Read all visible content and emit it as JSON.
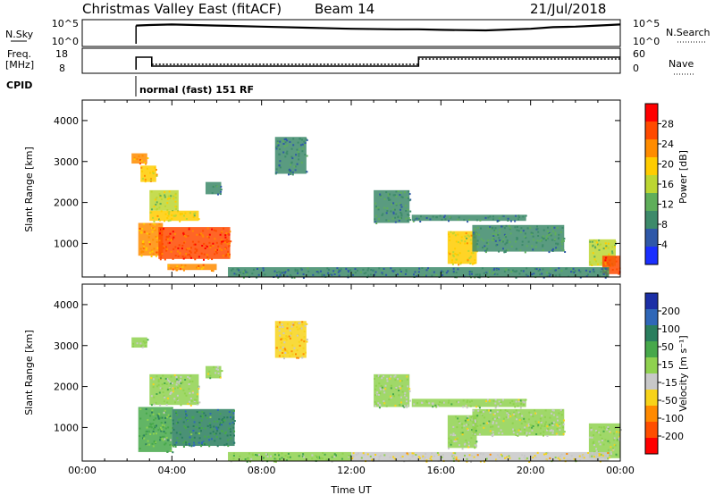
{
  "header": {
    "radar": "Christmas Valley East (fitACF)",
    "beam": "Beam 14",
    "date": "21/Jul/2018"
  },
  "status_panels": {
    "nsky_label": "N.Sky",
    "nsky_ticks": [
      "10^5",
      "10^0"
    ],
    "nsearch_label": "N.Search",
    "nsearch_ticks": [
      "10^5",
      "10^0"
    ],
    "freq_label": "Freq.",
    "freq_unit": "[MHz]",
    "freq_ticks": [
      "18",
      "8"
    ],
    "nave_label": "Nave",
    "nave_ticks": [
      "60",
      "0"
    ],
    "cpid_label": "CPID",
    "cpid_text": "normal (fast) 151 RF"
  },
  "colors": {
    "power_scale": [
      "#1a2fff",
      "#2f58a8",
      "#3d8a6a",
      "#5fae5a",
      "#bcd632",
      "#ffcc00",
      "#ff8c00",
      "#ff4a00",
      "#ff0000"
    ],
    "velocity_scale": [
      "#1c2fa6",
      "#2f67b8",
      "#2a7e5e",
      "#47a84a",
      "#8fd14f",
      "#c8c8c8",
      "#f7d31a",
      "#ff8a00",
      "#ff4e00",
      "#ff0000"
    ]
  },
  "chart_data": [
    {
      "type": "heatmap",
      "panel": "power",
      "ylabel": "Slant Range [km]",
      "yticks": [
        "1000",
        "2000",
        "3000",
        "4000"
      ],
      "ylim": [
        180,
        4500
      ],
      "xlim": [
        0,
        24
      ],
      "colorbar_label": "Power [dB]",
      "colorbar_ticks": [
        "4",
        "8",
        "12",
        "16",
        "20",
        "24",
        "28"
      ],
      "clim": [
        0,
        32
      ],
      "regions": [
        {
          "t0": 2.2,
          "t1": 2.9,
          "r0": 2950,
          "r1": 3200,
          "v": 22
        },
        {
          "t0": 2.6,
          "t1": 3.3,
          "r0": 2500,
          "r1": 2900,
          "v": 20
        },
        {
          "t0": 3.0,
          "t1": 4.3,
          "r0": 1800,
          "r1": 2300,
          "v": 16
        },
        {
          "t0": 3.0,
          "t1": 5.2,
          "r0": 1550,
          "r1": 1800,
          "v": 18
        },
        {
          "t0": 2.5,
          "t1": 3.6,
          "r0": 700,
          "r1": 1500,
          "v": 22
        },
        {
          "t0": 3.4,
          "t1": 6.6,
          "r0": 620,
          "r1": 1400,
          "v": 26
        },
        {
          "t0": 3.8,
          "t1": 6.0,
          "r0": 350,
          "r1": 500,
          "v": 22
        },
        {
          "t0": 5.5,
          "t1": 6.2,
          "r0": 2200,
          "r1": 2500,
          "v": 10
        },
        {
          "t0": 8.6,
          "t1": 10.0,
          "r0": 2700,
          "r1": 3600,
          "v": 8
        },
        {
          "t0": 13.0,
          "t1": 14.6,
          "r0": 1500,
          "r1": 2300,
          "v": 10
        },
        {
          "t0": 14.7,
          "t1": 19.8,
          "r0": 1550,
          "r1": 1700,
          "v": 8
        },
        {
          "t0": 16.3,
          "t1": 17.6,
          "r0": 500,
          "r1": 1300,
          "v": 18
        },
        {
          "t0": 17.4,
          "t1": 21.5,
          "r0": 800,
          "r1": 1450,
          "v": 10
        },
        {
          "t0": 22.6,
          "t1": 23.8,
          "r0": 450,
          "r1": 1100,
          "v": 16
        },
        {
          "t0": 23.2,
          "t1": 24.0,
          "r0": 250,
          "r1": 700,
          "v": 28
        },
        {
          "t0": 6.5,
          "t1": 23.5,
          "r0": 180,
          "r1": 420,
          "v": 8
        }
      ]
    },
    {
      "type": "heatmap",
      "panel": "velocity",
      "ylabel": "Slant Range [km]",
      "yticks": [
        "1000",
        "2000",
        "3000",
        "4000"
      ],
      "ylim": [
        180,
        4500
      ],
      "xlim": [
        0,
        24
      ],
      "xlabel": "Time UT",
      "xticks": [
        "00:00",
        "04:00",
        "08:00",
        "12:00",
        "16:00",
        "20:00",
        "00:00"
      ],
      "colorbar_label": "Velocity [m s⁻¹]",
      "colorbar_ticks": [
        "200",
        "100",
        "50",
        "15",
        "-15",
        "-50",
        "-100",
        "-200"
      ],
      "clim": [
        -250,
        250
      ],
      "regions": [
        {
          "t0": 2.2,
          "t1": 2.9,
          "r0": 2950,
          "r1": 3200,
          "v": 0
        },
        {
          "t0": 3.0,
          "t1": 5.2,
          "r0": 1550,
          "r1": 2300,
          "v": 0
        },
        {
          "t0": 2.5,
          "t1": 4.0,
          "r0": 400,
          "r1": 1500,
          "v": 60
        },
        {
          "t0": 4.0,
          "t1": 6.8,
          "r0": 550,
          "r1": 1450,
          "v": 110
        },
        {
          "t0": 5.5,
          "t1": 6.2,
          "r0": 2200,
          "r1": 2500,
          "v": 0
        },
        {
          "t0": 8.6,
          "t1": 10.0,
          "r0": 2700,
          "r1": 3600,
          "v": -80
        },
        {
          "t0": 13.0,
          "t1": 14.6,
          "r0": 1500,
          "r1": 2300,
          "v": 0
        },
        {
          "t0": 14.7,
          "t1": 19.8,
          "r0": 1500,
          "r1": 1700,
          "v": 0
        },
        {
          "t0": 16.3,
          "t1": 17.6,
          "r0": 500,
          "r1": 1300,
          "v": 0
        },
        {
          "t0": 17.4,
          "t1": 21.5,
          "r0": 800,
          "r1": 1450,
          "v": 0
        },
        {
          "t0": 22.6,
          "t1": 24.0,
          "r0": 250,
          "r1": 1100,
          "v": 0
        },
        {
          "t0": 6.5,
          "t1": 12.0,
          "r0": 180,
          "r1": 400,
          "v": 30
        },
        {
          "t0": 12.0,
          "t1": 23.5,
          "r0": 180,
          "r1": 400,
          "v": -40
        }
      ]
    },
    {
      "type": "line",
      "panel": "nsky",
      "xlim": [
        0,
        24
      ],
      "series": [
        {
          "x": [
            2.4,
            3,
            4,
            5,
            6,
            8,
            10,
            12,
            14,
            15,
            16,
            18,
            20,
            21,
            22,
            23,
            24
          ],
          "y": [
            0.78,
            0.8,
            0.82,
            0.8,
            0.78,
            0.74,
            0.7,
            0.66,
            0.64,
            0.64,
            0.62,
            0.6,
            0.66,
            0.72,
            0.74,
            0.78,
            0.82
          ]
        }
      ]
    },
    {
      "type": "line",
      "panel": "freq",
      "xlim": [
        0,
        24
      ],
      "series": [
        {
          "x": [
            2.4,
            2.4,
            3.1,
            3.1,
            15.0,
            15.0,
            24.0
          ],
          "y": [
            8,
            15,
            15,
            10,
            10,
            15,
            15
          ]
        }
      ]
    }
  ]
}
